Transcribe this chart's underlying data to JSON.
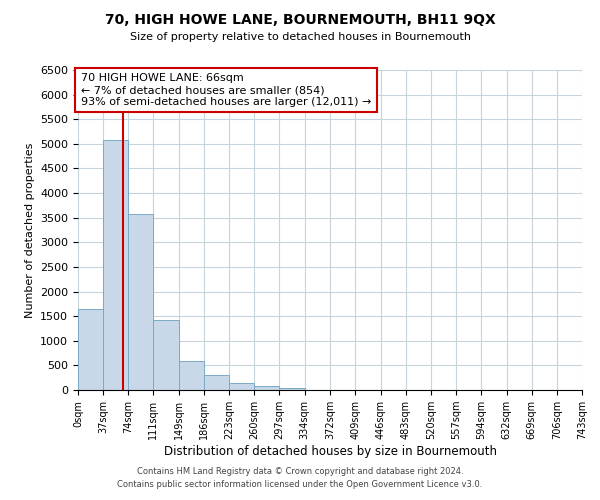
{
  "title": "70, HIGH HOWE LANE, BOURNEMOUTH, BH11 9QX",
  "subtitle": "Size of property relative to detached houses in Bournemouth",
  "xlabel": "Distribution of detached houses by size in Bournemouth",
  "ylabel": "Number of detached properties",
  "bar_color": "#c8d8e8",
  "bar_edge_color": "#7aaac8",
  "bin_edges": [
    0,
    37,
    74,
    111,
    149,
    186,
    223,
    260,
    297,
    334,
    372,
    409,
    446,
    483,
    520,
    557,
    594,
    632,
    669,
    706,
    743
  ],
  "bar_heights": [
    1640,
    5080,
    3580,
    1420,
    590,
    300,
    150,
    80,
    40,
    0,
    0,
    0,
    0,
    0,
    0,
    0,
    0,
    0,
    0,
    0
  ],
  "vline_x": 66,
  "vline_color": "#cc0000",
  "annotation_line1": "70 HIGH HOWE LANE: 66sqm",
  "annotation_line2": "← 7% of detached houses are smaller (854)",
  "annotation_line3": "93% of semi-detached houses are larger (12,011) →",
  "ylim": [
    0,
    6500
  ],
  "tick_labels": [
    "0sqm",
    "37sqm",
    "74sqm",
    "111sqm",
    "149sqm",
    "186sqm",
    "223sqm",
    "260sqm",
    "297sqm",
    "334sqm",
    "372sqm",
    "409sqm",
    "446sqm",
    "483sqm",
    "520sqm",
    "557sqm",
    "594sqm",
    "632sqm",
    "669sqm",
    "706sqm",
    "743sqm"
  ],
  "footer_line1": "Contains HM Land Registry data © Crown copyright and database right 2024.",
  "footer_line2": "Contains public sector information licensed under the Open Government Licence v3.0.",
  "background_color": "#ffffff",
  "grid_color": "#c8d4dc"
}
